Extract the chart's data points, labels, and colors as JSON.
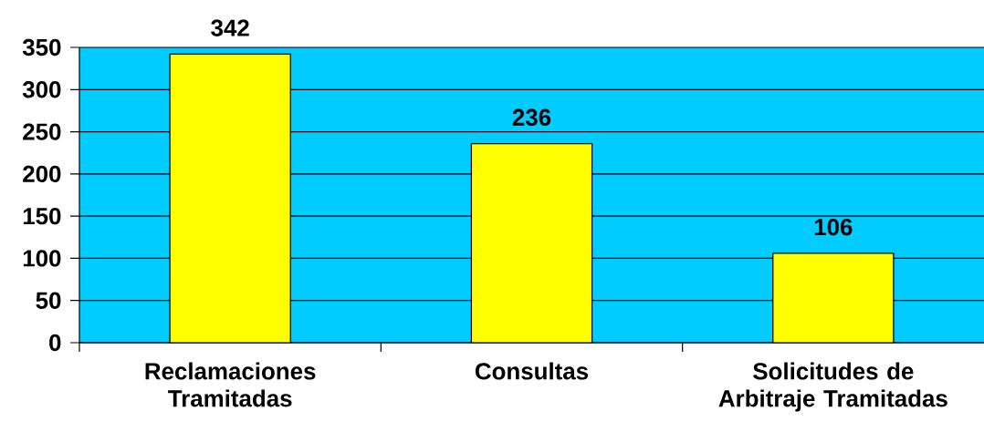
{
  "chart_data": {
    "type": "bar",
    "categories": [
      "Reclamaciones Tramitadas",
      "Consultas",
      "Solicitudes de Arbitraje Tramitadas"
    ],
    "values": [
      342,
      236,
      106
    ],
    "color": "#ffff00",
    "ylim": [
      0,
      350
    ],
    "yticks": [
      0,
      50,
      100,
      150,
      200,
      250,
      300,
      350
    ],
    "grid": "y",
    "data_labels": true
  }
}
